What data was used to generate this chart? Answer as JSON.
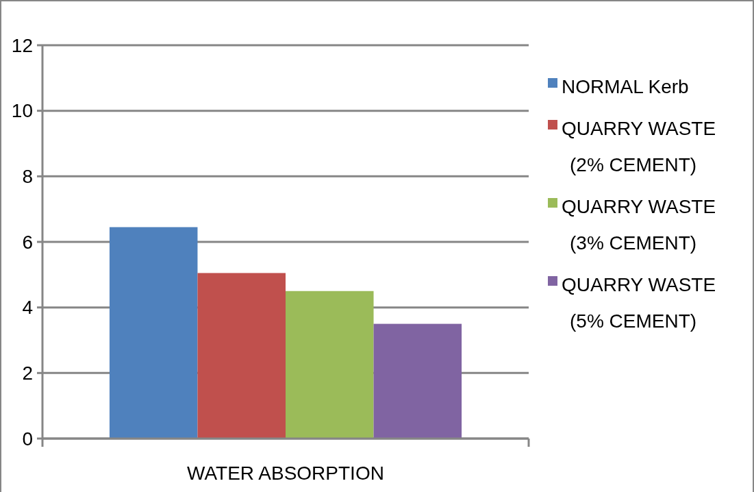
{
  "chart_data": {
    "type": "bar",
    "categories": [
      "WATER ABSORPTION"
    ],
    "series": [
      {
        "name": "NORMAL Kerb",
        "color": "#4f81bd",
        "values": [
          6.45
        ]
      },
      {
        "name": "QUARRY WASTE (2% CEMENT)",
        "color": "#c0504d",
        "values": [
          5.05
        ]
      },
      {
        "name": "QUARRY WASTE (3% CEMENT)",
        "color": "#9bbb59",
        "values": [
          4.5
        ]
      },
      {
        "name": "QUARRY WASTE (5% CEMENT)",
        "color": "#8064a2",
        "values": [
          3.5
        ]
      }
    ],
    "ylim": [
      0,
      12
    ],
    "yticks": [
      0,
      2,
      4,
      6,
      8,
      10,
      12
    ],
    "grid": "y",
    "legend": "right"
  }
}
